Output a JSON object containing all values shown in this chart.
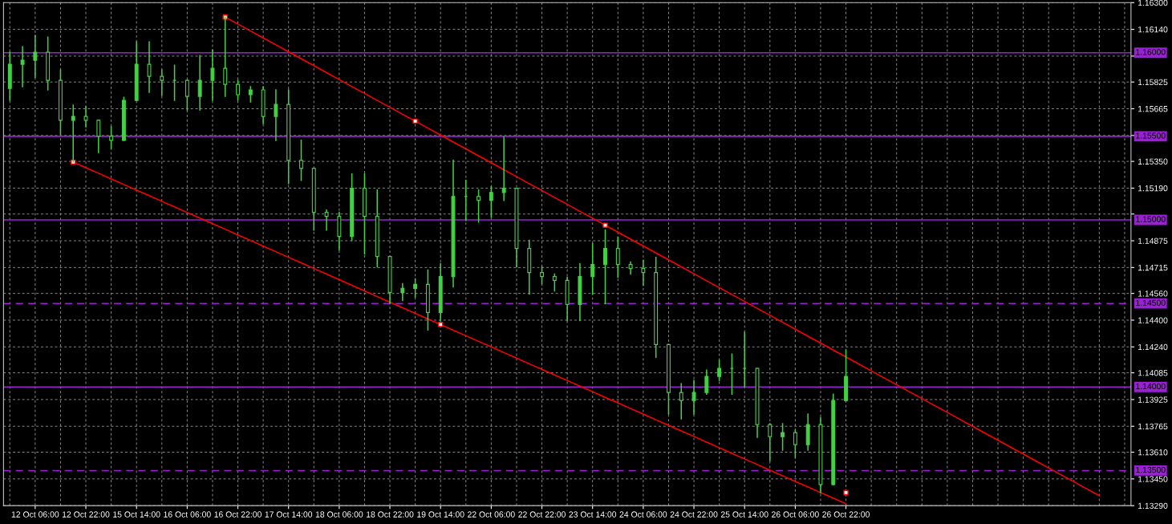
{
  "chart_data": {
    "type": "candlestick",
    "categories": [
      null,
      null,
      "12 Oct 06:00",
      null,
      null,
      null,
      "12 Oct 22:00",
      null,
      null,
      null,
      "15 Oct 14:00",
      null,
      null,
      null,
      "16 Oct 06:00",
      null,
      null,
      null,
      "16 Oct 22:00",
      null,
      null,
      null,
      "17 Oct 14:00",
      null,
      null,
      null,
      "18 Oct 06:00",
      null,
      null,
      null,
      "18 Oct 22:00",
      null,
      null,
      null,
      "19 Oct 14:00",
      null,
      null,
      null,
      "22 Oct 06:00",
      null,
      null,
      null,
      "22 Oct 22:00",
      null,
      null,
      null,
      "23 Oct 14:00",
      null,
      null,
      null,
      "24 Oct 06:00",
      null,
      null,
      null,
      "24 Oct 22:00",
      null,
      null,
      null,
      "25 Oct 14:00",
      null,
      null,
      null,
      "26 Oct 06:00",
      null,
      null,
      null,
      "26 Oct 22:00",
      null,
      null,
      null,
      null,
      null,
      null,
      null,
      null,
      null,
      null,
      null,
      null,
      null,
      null,
      null,
      null,
      null,
      null,
      null,
      null,
      null,
      null
    ],
    "ohlc": [
      [
        1.15787,
        1.16003,
        1.15715,
        1.15931
      ],
      [
        1.15931,
        1.16036,
        1.15797,
        1.15955
      ],
      [
        1.15955,
        1.16103,
        1.15854,
        1.16003
      ],
      [
        1.16003,
        1.16094,
        1.15778,
        1.15835
      ],
      [
        1.15835,
        1.15897,
        1.15514,
        1.15596
      ],
      [
        1.15596,
        1.15687,
        1.15346,
        1.15619
      ],
      [
        1.15619,
        1.15677,
        1.15557,
        1.15596
      ],
      [
        1.15596,
        1.15596,
        1.15404,
        1.155
      ],
      [
        1.155,
        1.15557,
        1.15428,
        1.15476
      ],
      [
        1.15476,
        1.15734,
        1.15476,
        1.15715
      ],
      [
        1.15715,
        1.16065,
        1.15715,
        1.15931
      ],
      [
        1.15931,
        1.16065,
        1.15763,
        1.15859
      ],
      [
        1.15859,
        1.15897,
        1.15744,
        1.15835
      ],
      [
        1.15835,
        1.15926,
        1.15715,
        1.15835
      ],
      [
        1.15835,
        1.15835,
        1.15658,
        1.15739
      ],
      [
        1.15739,
        1.15983,
        1.15658,
        1.15835
      ],
      [
        1.15835,
        1.16017,
        1.15715,
        1.15907
      ],
      [
        1.15907,
        1.16213,
        1.15739,
        1.15811
      ],
      [
        1.15811,
        1.15835,
        1.15715,
        1.15749
      ],
      [
        1.15749,
        1.15797,
        1.15706,
        1.15778
      ],
      [
        1.15778,
        1.15797,
        1.15576,
        1.15619
      ],
      [
        1.15619,
        1.15778,
        1.15476,
        1.15691
      ],
      [
        1.15691,
        1.15778,
        1.15217,
        1.15356
      ],
      [
        1.15356,
        1.15476,
        1.15236,
        1.15308
      ],
      [
        1.15308,
        1.15308,
        1.14939,
        1.15045
      ],
      [
        1.15045,
        1.15059,
        1.14939,
        1.15021
      ],
      [
        1.15021,
        1.15045,
        1.1482,
        1.14901
      ],
      [
        1.14901,
        1.15275,
        1.14877,
        1.15189
      ],
      [
        1.15189,
        1.15275,
        1.14796,
        1.15021
      ],
      [
        1.15021,
        1.15179,
        1.14719,
        1.14781
      ],
      [
        1.14781,
        1.14781,
        1.14499,
        1.14566
      ],
      [
        1.14566,
        1.14618,
        1.14518,
        1.1459
      ],
      [
        1.1459,
        1.14647,
        1.14537,
        1.14614
      ],
      [
        1.14614,
        1.147,
        1.14341,
        1.14446
      ],
      [
        1.14446,
        1.14738,
        1.14398,
        1.14661
      ],
      [
        1.14661,
        1.15356,
        1.14599,
        1.1514
      ],
      [
        1.1514,
        1.15236,
        1.14997,
        1.1514
      ],
      [
        1.1514,
        1.15179,
        1.14987,
        1.15117
      ],
      [
        1.15117,
        1.15198,
        1.15016,
        1.15164
      ],
      [
        1.15164,
        1.15495,
        1.15117,
        1.15189
      ],
      [
        1.15189,
        1.15189,
        1.14719,
        1.14829
      ],
      [
        1.14829,
        1.14877,
        1.14556,
        1.14685
      ],
      [
        1.14685,
        1.14719,
        1.14618,
        1.14661
      ],
      [
        1.14661,
        1.14676,
        1.14575,
        1.14638
      ],
      [
        1.14638,
        1.14657,
        1.14398,
        1.14494
      ],
      [
        1.14494,
        1.14738,
        1.14398,
        1.14661
      ],
      [
        1.14661,
        1.14858,
        1.14556,
        1.14733
      ],
      [
        1.14733,
        1.14939,
        1.14499,
        1.14829
      ],
      [
        1.14829,
        1.14896,
        1.14657,
        1.14733
      ],
      [
        1.14733,
        1.14748,
        1.14676,
        1.14709
      ],
      [
        1.14709,
        1.14757,
        1.14609,
        1.14685
      ],
      [
        1.14685,
        1.14776,
        1.14178,
        1.14254
      ],
      [
        1.14254,
        1.14254,
        1.13838,
        1.13967
      ],
      [
        1.13967,
        1.1402,
        1.13809,
        1.13919
      ],
      [
        1.13919,
        1.14039,
        1.13838,
        1.13967
      ],
      [
        1.13967,
        1.14101,
        1.13957,
        1.14063
      ],
      [
        1.14063,
        1.14159,
        1.14039,
        1.14111
      ],
      [
        1.14111,
        1.14197,
        1.13957,
        1.14111
      ],
      [
        1.14111,
        1.14326,
        1.14001,
        1.14111
      ],
      [
        1.14111,
        1.14111,
        1.13699,
        1.13775
      ],
      [
        1.13775,
        1.1378,
        1.1356,
        1.13703
      ],
      [
        1.13703,
        1.1378,
        1.13622,
        1.13727
      ],
      [
        1.13727,
        1.13742,
        1.13579,
        1.13655
      ],
      [
        1.13655,
        1.13838,
        1.13622,
        1.13775
      ],
      [
        1.13775,
        1.13818,
        1.13368,
        1.13416
      ],
      [
        1.13416,
        1.13957,
        1.13416,
        1.13919
      ],
      [
        1.13919,
        1.14221,
        1.13919,
        1.14063
      ],
      null,
      null,
      null,
      null,
      null,
      null,
      null,
      null,
      null,
      null,
      null,
      null,
      null,
      null,
      null,
      null,
      null,
      null,
      null,
      null,
      null,
      null
    ],
    "color": "#44d044",
    "series": [
      {
        "type": "line",
        "color": "#ff0000",
        "values": [
          null,
          null,
          null,
          null,
          null,
          null,
          null,
          null,
          null,
          null,
          null,
          null,
          null,
          null,
          null,
          null,
          null,
          1.16213,
          1.16172,
          1.1613,
          1.16089,
          1.16047,
          1.16006,
          1.15964,
          1.15923,
          1.15881,
          1.1584,
          1.15798,
          1.15757,
          1.15715,
          1.15674,
          1.15632,
          1.15591,
          1.15549,
          1.15508,
          1.15466,
          1.15425,
          1.15383,
          1.15342,
          1.153,
          1.15259,
          1.15217,
          1.15176,
          1.15134,
          1.15093,
          1.15051,
          1.1501,
          1.14968,
          1.14927,
          1.14885,
          1.14844,
          1.14802,
          1.14761,
          1.14719,
          1.14678,
          1.14636,
          1.14595,
          1.14553,
          1.14512,
          1.1447,
          1.14429,
          1.14387,
          1.14346,
          1.14304,
          1.14263,
          1.14221,
          1.1418,
          1.14138,
          1.14097,
          1.14055,
          1.14014,
          1.13972,
          1.13931,
          1.13889,
          1.13848,
          1.13806,
          1.13765,
          1.13723,
          1.13682,
          1.1364,
          1.13599,
          1.13557,
          1.13516,
          1.13474,
          1.13433,
          1.13391,
          1.1335,
          null,
          null
        ]
      },
      {
        "type": "line",
        "color": "#ff0000",
        "values": [
          null,
          null,
          null,
          null,
          null,
          1.15346,
          1.15312,
          1.15279,
          1.15245,
          1.15212,
          1.15178,
          1.15145,
          1.15111,
          1.15078,
          1.15044,
          1.15011,
          1.14977,
          1.14944,
          1.1491,
          1.14877,
          1.14843,
          1.1481,
          1.14776,
          1.14743,
          1.14709,
          1.14676,
          1.14642,
          1.14609,
          1.14575,
          1.14541,
          1.14508,
          1.14474,
          1.14441,
          1.14407,
          1.14374,
          1.1434,
          1.14307,
          1.14273,
          1.1424,
          1.14206,
          1.14173,
          1.14139,
          1.14106,
          1.14072,
          1.14039,
          1.14005,
          1.13972,
          1.13938,
          1.13905,
          1.13871,
          1.13838,
          1.13804,
          1.13771,
          1.13737,
          1.13704,
          1.1367,
          1.13637,
          1.13603,
          1.1357,
          1.13536,
          1.13502,
          1.13469,
          1.13435,
          1.13402,
          1.13368,
          1.13335,
          1.13301,
          null,
          null,
          null,
          null,
          null,
          null,
          null,
          null,
          null,
          null,
          null,
          null,
          null,
          null,
          null,
          null,
          null,
          null,
          null,
          null,
          null,
          null
        ]
      },
      {
        "type": "scatter",
        "color": "#ffffff",
        "marker": "square",
        "values": [
          null,
          null,
          null,
          null,
          null,
          1.15346,
          null,
          null,
          null,
          null,
          null,
          null,
          null,
          null,
          null,
          null,
          null,
          1.16213,
          null,
          null,
          null,
          null,
          null,
          null,
          null,
          null,
          null,
          null,
          null,
          null,
          null,
          null,
          1.15591,
          null,
          1.14374,
          null,
          null,
          null,
          null,
          null,
          null,
          null,
          null,
          null,
          null,
          null,
          null,
          1.14968,
          null,
          null,
          null,
          null,
          null,
          null,
          null,
          null,
          null,
          null,
          null,
          null,
          null,
          null,
          null,
          null,
          null,
          null,
          1.13368,
          null,
          null,
          null,
          null,
          null,
          null,
          null,
          null,
          null,
          null,
          null,
          null,
          null,
          null,
          null,
          null,
          null,
          null,
          null,
          null,
          null,
          null
        ]
      }
    ],
    "ref_lines": [
      {
        "axis": "y",
        "value": 1.16,
        "label": "1.16000",
        "color": "#9b1fd6",
        "line_style": "solid"
      },
      {
        "axis": "y",
        "value": 1.155,
        "label": "1.15500",
        "color": "#9b1fd6",
        "line_style": "solid"
      },
      {
        "axis": "y",
        "value": 1.15,
        "label": "1.15000",
        "color": "#9b1fd6",
        "line_style": "solid"
      },
      {
        "axis": "y",
        "value": 1.145,
        "label": "1.14500",
        "color": "#9b1fd6",
        "line_style": "dashed"
      },
      {
        "axis": "y",
        "value": 1.14,
        "label": "1.14000",
        "color": "#9b1fd6",
        "line_style": "solid"
      },
      {
        "axis": "y",
        "value": 1.135,
        "label": "1.13500",
        "color": "#9b1fd6",
        "line_style": "dashed"
      }
    ],
    "ylim": [
      1.1329,
      1.163
    ],
    "yticks": [
      {
        "value": 1.163,
        "label": "1.16300"
      },
      {
        "value": 1.1614,
        "label": "1.16140"
      },
      {
        "value": 1.1598,
        "label": null
      },
      {
        "value": 1.15825,
        "label": "1.15825"
      },
      {
        "value": 1.15665,
        "label": "1.15665"
      },
      {
        "value": 1.15505,
        "label": null
      },
      {
        "value": 1.1535,
        "label": "1.15350"
      },
      {
        "value": 1.1519,
        "label": "1.15190"
      },
      {
        "value": 1.15035,
        "label": null
      },
      {
        "value": 1.14875,
        "label": "1.14875"
      },
      {
        "value": 1.14715,
        "label": "1.14715"
      },
      {
        "value": 1.1456,
        "label": "1.14560"
      },
      {
        "value": 1.144,
        "label": "1.14400"
      },
      {
        "value": 1.1424,
        "label": "1.14240"
      },
      {
        "value": 1.14085,
        "label": "1.14085"
      },
      {
        "value": 1.13925,
        "label": "1.13925"
      },
      {
        "value": 1.13765,
        "label": "1.13765"
      },
      {
        "value": 1.1361,
        "label": "1.13610"
      },
      {
        "value": 1.1345,
        "label": "1.13450"
      },
      {
        "value": 1.1329,
        "label": "1.13290"
      }
    ],
    "grid": true
  }
}
